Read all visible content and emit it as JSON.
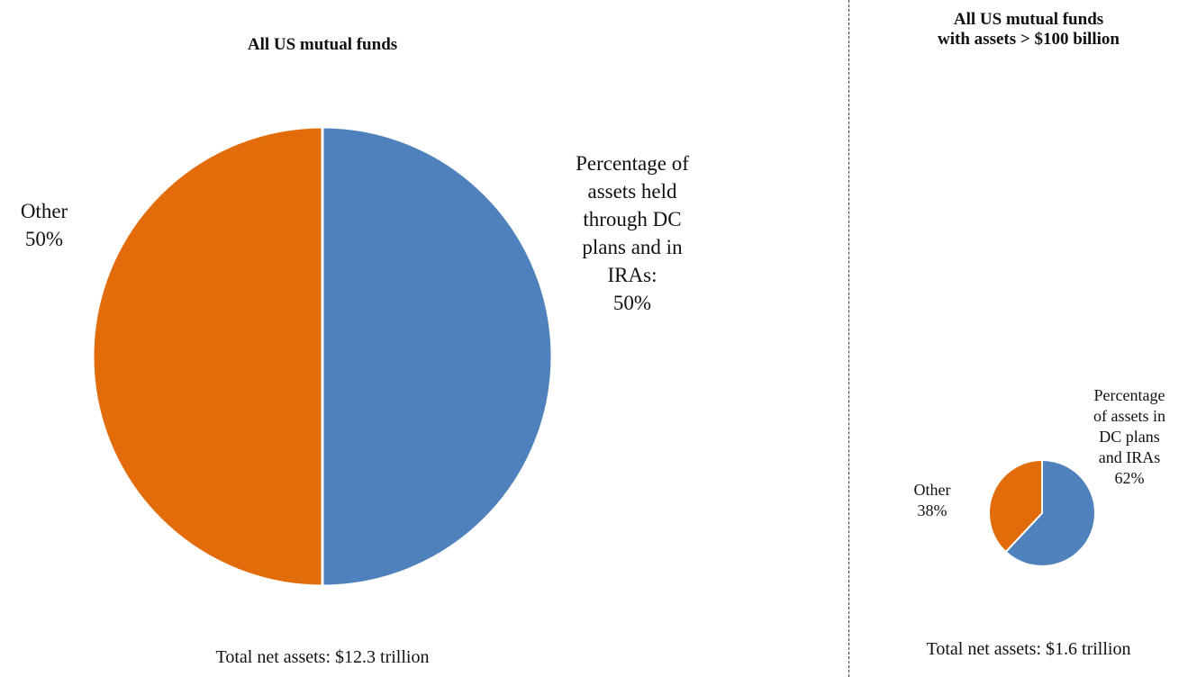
{
  "colors": {
    "dc_ira": "#4f81bd",
    "other": "#e36c0a",
    "divider": "#3a3a3a"
  },
  "chart_data": [
    {
      "type": "pie",
      "title": "All US mutual funds",
      "slices": [
        {
          "name": "Percentage of assets held through DC plans and in IRAs",
          "value": 50,
          "color": "#4f81bd"
        },
        {
          "name": "Other",
          "value": 50,
          "color": "#e36c0a"
        }
      ],
      "label_lines": {
        "dc_ira": [
          "Percentage of",
          "assets held",
          "through DC",
          "plans and in",
          "IRAs:",
          "50%"
        ],
        "other": [
          "Other",
          "50%"
        ]
      },
      "footer": "Total net assets: $12.3 trillion"
    },
    {
      "type": "pie",
      "title": "All US mutual funds with assets > $100 billion",
      "title_lines": [
        "All US mutual funds",
        "with assets > $100 billion"
      ],
      "slices": [
        {
          "name": "Percentage of assets in DC plans and IRAs",
          "value": 62,
          "color": "#4f81bd"
        },
        {
          "name": "Other",
          "value": 38,
          "color": "#e36c0a"
        }
      ],
      "label_lines": {
        "dc_ira": [
          "Percentage",
          "of assets in",
          "DC plans",
          "and IRAs",
          "62%"
        ],
        "other": [
          "Other",
          "38%"
        ]
      },
      "footer": "Total net assets: $1.6 trillion"
    }
  ]
}
